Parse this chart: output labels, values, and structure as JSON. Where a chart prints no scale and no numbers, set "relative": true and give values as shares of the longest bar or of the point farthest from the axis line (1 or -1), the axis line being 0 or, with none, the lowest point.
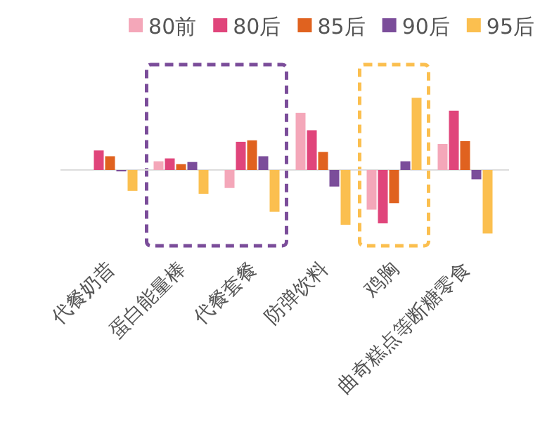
{
  "chart_data": {
    "type": "bar",
    "relative": true,
    "legend": "top right",
    "categories": [
      "代餐奶昔",
      "蛋白能量棒",
      "代餐套餐",
      "防弹饮料",
      "鸡胸",
      "曲奇糕点等断糖零食"
    ],
    "series": [
      {
        "name": "80前",
        "color": "#f4a7b9",
        "values": [
          null,
          0.12,
          -0.25,
          0.79,
          -0.55,
          0.36
        ]
      },
      {
        "name": "80后",
        "color": "#e0457b",
        "values": [
          0.27,
          0.16,
          0.39,
          0.55,
          -0.74,
          0.82
        ]
      },
      {
        "name": "85后",
        "color": "#e0621f",
        "values": [
          0.19,
          0.08,
          0.41,
          0.25,
          -0.46,
          0.4
        ]
      },
      {
        "name": "90后",
        "color": "#7b4d9a",
        "values": [
          -0.02,
          0.11,
          0.19,
          -0.23,
          0.12,
          -0.13
        ]
      },
      {
        "name": "95后",
        "color": "#fbbf4f",
        "values": [
          -0.29,
          -0.33,
          -0.58,
          -0.76,
          1,
          -0.88
        ]
      }
    ]
  }
}
